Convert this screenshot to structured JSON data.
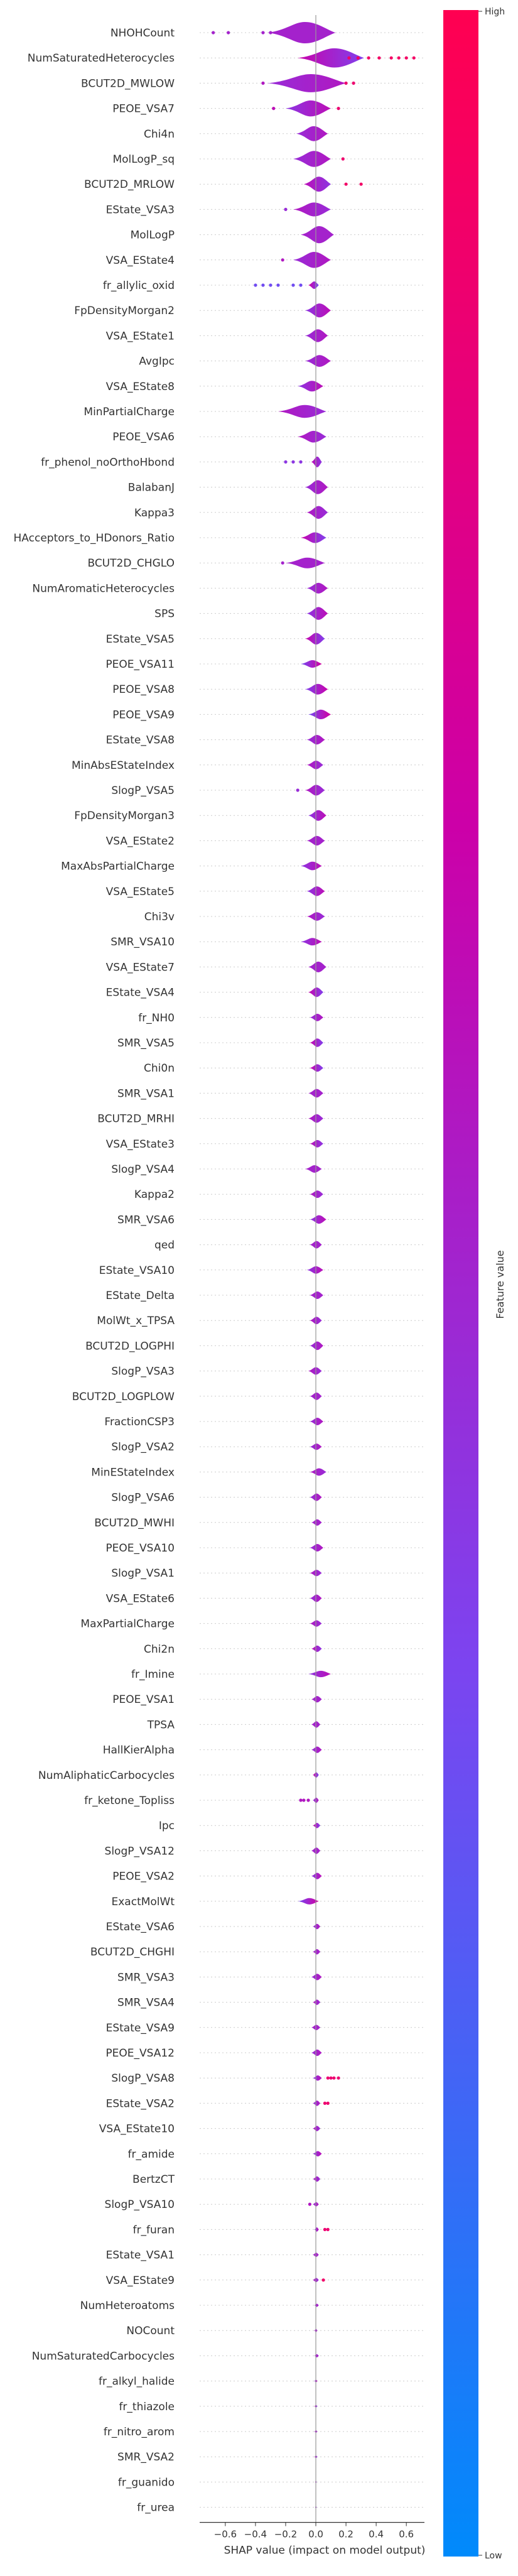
{
  "chart_data": {
    "type": "scatter",
    "subtype": "shap-beeswarm-violin",
    "xlabel": "SHAP value (impact on model output)",
    "xticks": [
      -0.6,
      -0.4,
      -0.2,
      0.0,
      0.2,
      0.4,
      0.6
    ],
    "xtick_labels": [
      "−0.6",
      "−0.4",
      "−0.2",
      "0.0",
      "0.2",
      "0.4",
      "0.6"
    ],
    "xlim": [
      -0.77,
      0.72
    ],
    "grid": "horizontal dashed row lines",
    "colorbar": {
      "title": "Feature value",
      "high_label": "High",
      "low_label": "Low",
      "colors": [
        "#008afb",
        "#7c44f0",
        "#cc00a8",
        "#ff0051"
      ]
    },
    "features": [
      {
        "name": "NHOHCount",
        "lo": -0.32,
        "hi": 0.13,
        "w": 1.0,
        "c": 0.5,
        "outliers": [
          -0.68,
          -0.58,
          -0.35,
          -0.3
        ]
      },
      {
        "name": "NumSaturatedHeterocycles",
        "lo": -0.12,
        "hi": 0.32,
        "w": 0.9,
        "c": 0.35,
        "outliers": [
          0.22,
          0.28,
          0.35,
          0.42,
          0.5,
          0.55,
          0.6,
          0.65
        ]
      },
      {
        "name": "BCUT2D_MWLOW",
        "lo": -0.32,
        "hi": 0.2,
        "w": 0.85,
        "c": 0.55,
        "outliers": [
          -0.35,
          0.2,
          0.25
        ]
      },
      {
        "name": "PEOE_VSA7",
        "lo": -0.2,
        "hi": 0.1,
        "w": 0.75,
        "c": 0.6,
        "outliers": [
          -0.28,
          0.15
        ]
      },
      {
        "name": "Chi4n",
        "lo": -0.13,
        "hi": 0.08,
        "w": 0.7,
        "c": 0.55,
        "outliers": []
      },
      {
        "name": "MolLogP_sq",
        "lo": -0.15,
        "hi": 0.1,
        "w": 0.75,
        "c": 0.55,
        "outliers": [
          0.18
        ]
      },
      {
        "name": "BCUT2D_MRLOW",
        "lo": -0.08,
        "hi": 0.1,
        "w": 0.7,
        "c": 0.4,
        "outliers": [
          0.2,
          0.3
        ]
      },
      {
        "name": "EState_VSA3",
        "lo": -0.15,
        "hi": 0.1,
        "w": 0.65,
        "c": 0.45,
        "outliers": [
          -0.2
        ]
      },
      {
        "name": "MolLogP",
        "lo": -0.1,
        "hi": 0.12,
        "w": 0.8,
        "c": 0.5,
        "outliers": []
      },
      {
        "name": "VSA_EState4",
        "lo": -0.15,
        "hi": 0.1,
        "w": 0.75,
        "c": 0.55,
        "outliers": [
          -0.22
        ]
      },
      {
        "name": "fr_allylic_oxid",
        "lo": -0.05,
        "hi": 0.02,
        "w": 0.35,
        "c": 0.3,
        "outliers": [
          -0.4,
          -0.35,
          -0.3,
          -0.25,
          -0.15,
          -0.1
        ]
      },
      {
        "name": "FpDensityMorgan2",
        "lo": -0.07,
        "hi": 0.1,
        "w": 0.65,
        "c": 0.6,
        "outliers": []
      },
      {
        "name": "VSA_EState1",
        "lo": -0.07,
        "hi": 0.08,
        "w": 0.6,
        "c": 0.55,
        "outliers": []
      },
      {
        "name": "AvgIpc",
        "lo": -0.07,
        "hi": 0.1,
        "w": 0.55,
        "c": 0.55,
        "outliers": []
      },
      {
        "name": "VSA_EState8",
        "lo": -0.12,
        "hi": 0.05,
        "w": 0.5,
        "c": 0.6,
        "outliers": []
      },
      {
        "name": "MinPartialCharge",
        "lo": -0.25,
        "hi": 0.07,
        "w": 0.6,
        "c": 0.45,
        "outliers": []
      },
      {
        "name": "PEOE_VSA6",
        "lo": -0.12,
        "hi": 0.07,
        "w": 0.55,
        "c": 0.45,
        "outliers": []
      },
      {
        "name": "fr_phenol_noOrthoHbond",
        "lo": -0.03,
        "hi": 0.04,
        "w": 0.5,
        "c": 0.4,
        "outliers": [
          -0.2,
          -0.15,
          -0.1
        ]
      },
      {
        "name": "BalabanJ",
        "lo": -0.07,
        "hi": 0.08,
        "w": 0.65,
        "c": 0.55,
        "outliers": []
      },
      {
        "name": "Kappa3",
        "lo": -0.06,
        "hi": 0.08,
        "w": 0.6,
        "c": 0.45,
        "outliers": []
      },
      {
        "name": "HAcceptors_to_HDonors_Ratio",
        "lo": -0.1,
        "hi": 0.07,
        "w": 0.5,
        "c": 0.35,
        "outliers": []
      },
      {
        "name": "BCUT2D_CHGLO",
        "lo": -0.2,
        "hi": 0.06,
        "w": 0.5,
        "c": 0.5,
        "outliers": [
          -0.22
        ]
      },
      {
        "name": "NumAromaticHeterocycles",
        "lo": -0.06,
        "hi": 0.08,
        "w": 0.5,
        "c": 0.55,
        "outliers": []
      },
      {
        "name": "SPS",
        "lo": -0.06,
        "hi": 0.08,
        "w": 0.6,
        "c": 0.6,
        "outliers": []
      },
      {
        "name": "EState_VSA5",
        "lo": -0.07,
        "hi": 0.06,
        "w": 0.55,
        "c": 0.35,
        "outliers": []
      },
      {
        "name": "PEOE_VSA11",
        "lo": -0.1,
        "hi": 0.04,
        "w": 0.35,
        "c": 0.7,
        "outliers": []
      },
      {
        "name": "PEOE_VSA8",
        "lo": -0.07,
        "hi": 0.08,
        "w": 0.5,
        "c": 0.65,
        "outliers": []
      },
      {
        "name": "PEOE_VSA9",
        "lo": -0.05,
        "hi": 0.1,
        "w": 0.45,
        "c": 0.7,
        "outliers": []
      },
      {
        "name": "EState_VSA8",
        "lo": -0.06,
        "hi": 0.06,
        "w": 0.45,
        "c": 0.55,
        "outliers": []
      },
      {
        "name": "MinAbsEStateIndex",
        "lo": -0.06,
        "hi": 0.05,
        "w": 0.4,
        "c": 0.45,
        "outliers": []
      },
      {
        "name": "SlogP_VSA5",
        "lo": -0.07,
        "hi": 0.06,
        "w": 0.5,
        "c": 0.45,
        "outliers": [
          -0.12
        ]
      },
      {
        "name": "FpDensityMorgan3",
        "lo": -0.05,
        "hi": 0.07,
        "w": 0.5,
        "c": 0.6,
        "outliers": []
      },
      {
        "name": "VSA_EState2",
        "lo": -0.06,
        "hi": 0.06,
        "w": 0.45,
        "c": 0.5,
        "outliers": []
      },
      {
        "name": "MaxAbsPartialCharge",
        "lo": -0.1,
        "hi": 0.04,
        "w": 0.4,
        "c": 0.6,
        "outliers": []
      },
      {
        "name": "VSA_EState5",
        "lo": -0.06,
        "hi": 0.06,
        "w": 0.45,
        "c": 0.6,
        "outliers": []
      },
      {
        "name": "Chi3v",
        "lo": -0.06,
        "hi": 0.06,
        "w": 0.4,
        "c": 0.45,
        "outliers": []
      },
      {
        "name": "SMR_VSA10",
        "lo": -0.1,
        "hi": 0.04,
        "w": 0.35,
        "c": 0.6,
        "outliers": []
      },
      {
        "name": "VSA_EState7",
        "lo": -0.05,
        "hi": 0.07,
        "w": 0.5,
        "c": 0.5,
        "outliers": []
      },
      {
        "name": "EState_VSA4",
        "lo": -0.05,
        "hi": 0.05,
        "w": 0.45,
        "c": 0.35,
        "outliers": []
      },
      {
        "name": "fr_NH0",
        "lo": -0.04,
        "hi": 0.05,
        "w": 0.35,
        "c": 0.55,
        "outliers": []
      },
      {
        "name": "SMR_VSA5",
        "lo": -0.04,
        "hi": 0.05,
        "w": 0.4,
        "c": 0.35,
        "outliers": []
      },
      {
        "name": "Chi0n",
        "lo": -0.04,
        "hi": 0.05,
        "w": 0.35,
        "c": 0.35,
        "outliers": []
      },
      {
        "name": "SMR_VSA1",
        "lo": -0.05,
        "hi": 0.05,
        "w": 0.4,
        "c": 0.5,
        "outliers": []
      },
      {
        "name": "BCUT2D_MRHI",
        "lo": -0.05,
        "hi": 0.05,
        "w": 0.4,
        "c": 0.45,
        "outliers": []
      },
      {
        "name": "VSA_EState3",
        "lo": -0.04,
        "hi": 0.05,
        "w": 0.35,
        "c": 0.4,
        "outliers": []
      },
      {
        "name": "SlogP_VSA4",
        "lo": -0.07,
        "hi": 0.04,
        "w": 0.35,
        "c": 0.5,
        "outliers": []
      },
      {
        "name": "Kappa2",
        "lo": -0.04,
        "hi": 0.05,
        "w": 0.35,
        "c": 0.45,
        "outliers": []
      },
      {
        "name": "SMR_VSA6",
        "lo": -0.04,
        "hi": 0.07,
        "w": 0.4,
        "c": 0.6,
        "outliers": []
      },
      {
        "name": "qed",
        "lo": -0.04,
        "hi": 0.04,
        "w": 0.35,
        "c": 0.5,
        "outliers": []
      },
      {
        "name": "EState_VSA10",
        "lo": -0.06,
        "hi": 0.05,
        "w": 0.35,
        "c": 0.6,
        "outliers": []
      },
      {
        "name": "EState_Delta",
        "lo": -0.04,
        "hi": 0.05,
        "w": 0.35,
        "c": 0.5,
        "outliers": []
      },
      {
        "name": "MolWt_x_TPSA",
        "lo": -0.04,
        "hi": 0.04,
        "w": 0.35,
        "c": 0.45,
        "outliers": []
      },
      {
        "name": "BCUT2D_LOGPHI",
        "lo": -0.04,
        "hi": 0.05,
        "w": 0.4,
        "c": 0.55,
        "outliers": []
      },
      {
        "name": "SlogP_VSA3",
        "lo": -0.05,
        "hi": 0.04,
        "w": 0.35,
        "c": 0.45,
        "outliers": []
      },
      {
        "name": "BCUT2D_LOGPLOW",
        "lo": -0.04,
        "hi": 0.04,
        "w": 0.35,
        "c": 0.5,
        "outliers": []
      },
      {
        "name": "FractionCSP3",
        "lo": -0.04,
        "hi": 0.05,
        "w": 0.35,
        "c": 0.55,
        "outliers": []
      },
      {
        "name": "SlogP_VSA2",
        "lo": -0.04,
        "hi": 0.04,
        "w": 0.3,
        "c": 0.55,
        "outliers": []
      },
      {
        "name": "MinEStateIndex",
        "lo": -0.04,
        "hi": 0.07,
        "w": 0.35,
        "c": 0.45,
        "outliers": []
      },
      {
        "name": "SlogP_VSA6",
        "lo": -0.04,
        "hi": 0.04,
        "w": 0.35,
        "c": 0.55,
        "outliers": []
      },
      {
        "name": "BCUT2D_MWHI",
        "lo": -0.03,
        "hi": 0.04,
        "w": 0.3,
        "c": 0.5,
        "outliers": []
      },
      {
        "name": "PEOE_VSA10",
        "lo": -0.04,
        "hi": 0.05,
        "w": 0.35,
        "c": 0.55,
        "outliers": []
      },
      {
        "name": "SlogP_VSA1",
        "lo": -0.04,
        "hi": 0.04,
        "w": 0.3,
        "c": 0.45,
        "outliers": []
      },
      {
        "name": "VSA_EState6",
        "lo": -0.04,
        "hi": 0.04,
        "w": 0.35,
        "c": 0.55,
        "outliers": []
      },
      {
        "name": "MaxPartialCharge",
        "lo": -0.04,
        "hi": 0.04,
        "w": 0.3,
        "c": 0.45,
        "outliers": []
      },
      {
        "name": "Chi2n",
        "lo": -0.03,
        "hi": 0.04,
        "w": 0.3,
        "c": 0.4,
        "outliers": []
      },
      {
        "name": "fr_Imine",
        "lo": -0.05,
        "hi": 0.1,
        "w": 0.3,
        "c": 0.6,
        "outliers": []
      },
      {
        "name": "PEOE_VSA1",
        "lo": -0.03,
        "hi": 0.04,
        "w": 0.3,
        "c": 0.5,
        "outliers": []
      },
      {
        "name": "TPSA",
        "lo": -0.03,
        "hi": 0.03,
        "w": 0.3,
        "c": 0.5,
        "outliers": []
      },
      {
        "name": "HallKierAlpha",
        "lo": -0.03,
        "hi": 0.04,
        "w": 0.3,
        "c": 0.55,
        "outliers": []
      },
      {
        "name": "NumAliphaticCarbocycles",
        "lo": -0.02,
        "hi": 0.02,
        "w": 0.25,
        "c": 0.3,
        "outliers": []
      },
      {
        "name": "fr_ketone_Topliss",
        "lo": -0.02,
        "hi": 0.02,
        "w": 0.25,
        "c": 0.55,
        "outliers": [
          -0.1,
          -0.08,
          -0.05
        ]
      },
      {
        "name": "Ipc",
        "lo": -0.02,
        "hi": 0.03,
        "w": 0.25,
        "c": 0.35,
        "outliers": []
      },
      {
        "name": "SlogP_VSA12",
        "lo": -0.03,
        "hi": 0.03,
        "w": 0.3,
        "c": 0.5,
        "outliers": []
      },
      {
        "name": "PEOE_VSA2",
        "lo": -0.03,
        "hi": 0.04,
        "w": 0.3,
        "c": 0.6,
        "outliers": []
      },
      {
        "name": "ExactMolWt",
        "lo": -0.12,
        "hi": 0.02,
        "w": 0.3,
        "c": 0.7,
        "outliers": []
      },
      {
        "name": "EState_VSA6",
        "lo": -0.02,
        "hi": 0.03,
        "w": 0.25,
        "c": 0.55,
        "outliers": []
      },
      {
        "name": "BCUT2D_CHGHI",
        "lo": -0.02,
        "hi": 0.03,
        "w": 0.25,
        "c": 0.5,
        "outliers": []
      },
      {
        "name": "SMR_VSA3",
        "lo": -0.03,
        "hi": 0.04,
        "w": 0.3,
        "c": 0.55,
        "outliers": []
      },
      {
        "name": "SMR_VSA4",
        "lo": -0.02,
        "hi": 0.03,
        "w": 0.25,
        "c": 0.45,
        "outliers": []
      },
      {
        "name": "EState_VSA9",
        "lo": -0.03,
        "hi": 0.03,
        "w": 0.25,
        "c": 0.5,
        "outliers": []
      },
      {
        "name": "PEOE_VSA12",
        "lo": -0.03,
        "hi": 0.04,
        "w": 0.3,
        "c": 0.55,
        "outliers": []
      },
      {
        "name": "SlogP_VSA8",
        "lo": -0.02,
        "hi": 0.04,
        "w": 0.25,
        "c": 0.6,
        "outliers": [
          0.08,
          0.1,
          0.12,
          0.15
        ]
      },
      {
        "name": "EState_VSA2",
        "lo": -0.02,
        "hi": 0.03,
        "w": 0.25,
        "c": 0.55,
        "outliers": [
          0.06,
          0.08
        ]
      },
      {
        "name": "VSA_EState10",
        "lo": -0.02,
        "hi": 0.03,
        "w": 0.25,
        "c": 0.45,
        "outliers": []
      },
      {
        "name": "fr_amide",
        "lo": -0.02,
        "hi": 0.04,
        "w": 0.25,
        "c": 0.6,
        "outliers": []
      },
      {
        "name": "BertzCT",
        "lo": -0.02,
        "hi": 0.03,
        "w": 0.25,
        "c": 0.45,
        "outliers": []
      },
      {
        "name": "SlogP_VSA10",
        "lo": -0.02,
        "hi": 0.02,
        "w": 0.2,
        "c": 0.55,
        "outliers": [
          -0.04
        ]
      },
      {
        "name": "fr_furan",
        "lo": -0.01,
        "hi": 0.02,
        "w": 0.2,
        "c": 0.6,
        "outliers": [
          0.06,
          0.08
        ]
      },
      {
        "name": "EState_VSA1",
        "lo": -0.02,
        "hi": 0.02,
        "w": 0.2,
        "c": 0.5,
        "outliers": []
      },
      {
        "name": "VSA_EState9",
        "lo": -0.02,
        "hi": 0.02,
        "w": 0.2,
        "c": 0.45,
        "outliers": [
          0.05
        ]
      },
      {
        "name": "NumHeteroatoms",
        "lo": -0.01,
        "hi": 0.02,
        "w": 0.15,
        "c": 0.5,
        "outliers": []
      },
      {
        "name": "NOCount",
        "lo": -0.01,
        "hi": 0.01,
        "w": 0.15,
        "c": 0.5,
        "outliers": []
      },
      {
        "name": "NumSaturatedCarbocycles",
        "lo": -0.01,
        "hi": 0.02,
        "w": 0.15,
        "c": 0.5,
        "outliers": []
      },
      {
        "name": "fr_alkyl_halide",
        "lo": -0.01,
        "hi": 0.01,
        "w": 0.12,
        "c": 0.6,
        "outliers": []
      },
      {
        "name": "fr_thiazole",
        "lo": -0.01,
        "hi": 0.01,
        "w": 0.12,
        "c": 0.35,
        "outliers": []
      },
      {
        "name": "fr_nitro_arom",
        "lo": -0.01,
        "hi": 0.01,
        "w": 0.12,
        "c": 0.5,
        "outliers": []
      },
      {
        "name": "SMR_VSA2",
        "lo": -0.01,
        "hi": 0.01,
        "w": 0.1,
        "c": 0.4,
        "outliers": []
      },
      {
        "name": "fr_guanido",
        "lo": -0.005,
        "hi": 0.005,
        "w": 0.08,
        "c": 0.4,
        "outliers": []
      },
      {
        "name": "fr_urea",
        "lo": -0.005,
        "hi": 0.005,
        "w": 0.08,
        "c": 0.35,
        "outliers": []
      }
    ]
  }
}
